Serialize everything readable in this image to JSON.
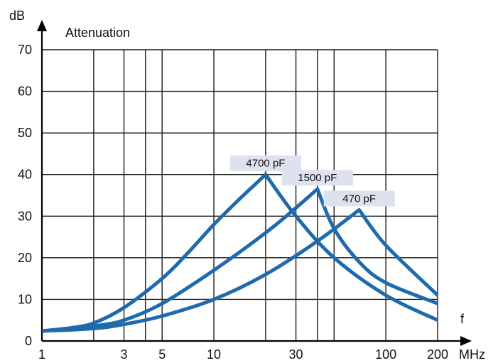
{
  "chart_data": {
    "type": "line",
    "title": "",
    "ylabel_unit": "dB",
    "ylabel": "Attenuation",
    "xlabel": "f",
    "x_unit": "MHz",
    "xscale": "log",
    "xlim": [
      1,
      200
    ],
    "ylim": [
      0,
      70
    ],
    "grid": true,
    "curve_color": "#1f6aad",
    "x_tick_values": [
      1,
      3,
      5,
      10,
      30,
      100,
      200
    ],
    "x_tick_labels": [
      "1",
      "3",
      "5",
      "10",
      "30",
      "100",
      "200"
    ],
    "x_grid_values": [
      1,
      2,
      3,
      4,
      5,
      10,
      20,
      30,
      40,
      50,
      100,
      200
    ],
    "y_ticks": [
      0,
      10,
      20,
      30,
      40,
      50,
      60,
      70
    ],
    "y_tick_labels": [
      "0",
      "10",
      "20",
      "30",
      "40",
      "50",
      "60",
      "70"
    ],
    "series": [
      {
        "name": "4700 pF",
        "x": [
          1,
          1.5,
          2,
          3,
          5,
          7,
          10,
          14,
          20,
          30,
          50,
          100,
          200
        ],
        "y": [
          2.4,
          3.2,
          4.3,
          8,
          15,
          21,
          28,
          34,
          40,
          30,
          20,
          11,
          5
        ]
      },
      {
        "name": "1500 pF",
        "x": [
          1,
          2,
          3,
          5,
          10,
          20,
          30,
          40,
          50,
          70,
          100,
          200
        ],
        "y": [
          2.4,
          3.6,
          5,
          9,
          17,
          26,
          32,
          36.5,
          27,
          19,
          14,
          9
        ]
      },
      {
        "name": "470 pF",
        "x": [
          1,
          2,
          3,
          5,
          10,
          20,
          40,
          70,
          100,
          200
        ],
        "y": [
          2.4,
          3,
          4,
          6,
          10,
          16,
          24,
          31.5,
          23,
          11
        ]
      }
    ]
  }
}
